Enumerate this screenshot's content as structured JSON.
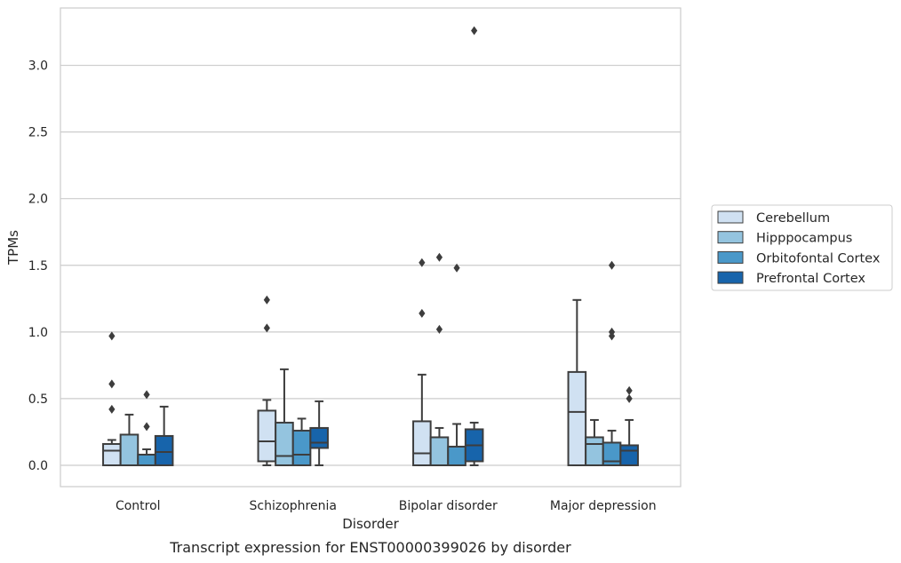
{
  "chart_data": {
    "type": "box",
    "caption": "Transcript expression for ENST00000399026 by disorder",
    "xlabel": "Disorder",
    "ylabel": "TPMs",
    "ylim": [
      -0.16,
      3.43
    ],
    "yticks": [
      0.0,
      0.5,
      1.0,
      1.5,
      2.0,
      2.5,
      3.0
    ],
    "ytick_labels": [
      "0.0",
      "0.5",
      "1.0",
      "1.5",
      "2.0",
      "2.5",
      "3.0"
    ],
    "grid": "horizontal",
    "legend_position": "right",
    "categories": [
      "Control",
      "Schizophrenia",
      "Bipolar disorder",
      "Major depression"
    ],
    "series": [
      {
        "name": "Cerebellum",
        "color": "#d0e1f2",
        "boxes": [
          {
            "whislo": 0.0,
            "q1": 0.0,
            "med": 0.11,
            "q3": 0.16,
            "whishi": 0.19,
            "fliers": [
              0.42,
              0.61,
              0.97
            ]
          },
          {
            "whislo": 0.0,
            "q1": 0.03,
            "med": 0.18,
            "q3": 0.41,
            "whishi": 0.49,
            "fliers": [
              1.03,
              1.24
            ]
          },
          {
            "whislo": 0.0,
            "q1": 0.0,
            "med": 0.09,
            "q3": 0.33,
            "whishi": 0.68,
            "fliers": [
              1.14,
              1.52
            ]
          },
          {
            "whislo": 0.0,
            "q1": 0.0,
            "med": 0.4,
            "q3": 0.7,
            "whishi": 1.24,
            "fliers": []
          }
        ]
      },
      {
        "name": "Hipppocampus",
        "color": "#94c4df",
        "boxes": [
          {
            "whislo": 0.0,
            "q1": 0.0,
            "med": 0.0,
            "q3": 0.23,
            "whishi": 0.38,
            "fliers": []
          },
          {
            "whislo": 0.0,
            "q1": 0.0,
            "med": 0.07,
            "q3": 0.32,
            "whishi": 0.72,
            "fliers": []
          },
          {
            "whislo": 0.0,
            "q1": 0.0,
            "med": 0.0,
            "q3": 0.21,
            "whishi": 0.28,
            "fliers": [
              1.02,
              1.56
            ]
          },
          {
            "whislo": 0.0,
            "q1": 0.0,
            "med": 0.16,
            "q3": 0.21,
            "whishi": 0.34,
            "fliers": []
          }
        ]
      },
      {
        "name": "Orbitofontal Cortex",
        "color": "#4a98c9",
        "boxes": [
          {
            "whislo": 0.0,
            "q1": 0.0,
            "med": 0.0,
            "q3": 0.08,
            "whishi": 0.12,
            "fliers": [
              0.29,
              0.53
            ]
          },
          {
            "whislo": 0.0,
            "q1": 0.0,
            "med": 0.08,
            "q3": 0.26,
            "whishi": 0.35,
            "fliers": []
          },
          {
            "whislo": 0.0,
            "q1": 0.0,
            "med": 0.0,
            "q3": 0.14,
            "whishi": 0.31,
            "fliers": [
              1.48
            ]
          },
          {
            "whislo": 0.0,
            "q1": 0.0,
            "med": 0.03,
            "q3": 0.17,
            "whishi": 0.26,
            "fliers": [
              0.97,
              1.0,
              1.5
            ]
          }
        ]
      },
      {
        "name": "Prefrontal Cortex",
        "color": "#1764ab",
        "boxes": [
          {
            "whislo": 0.0,
            "q1": 0.0,
            "med": 0.1,
            "q3": 0.22,
            "whishi": 0.44,
            "fliers": []
          },
          {
            "whislo": 0.0,
            "q1": 0.13,
            "med": 0.17,
            "q3": 0.28,
            "whishi": 0.48,
            "fliers": []
          },
          {
            "whislo": 0.0,
            "q1": 0.03,
            "med": 0.15,
            "q3": 0.27,
            "whishi": 0.32,
            "fliers": [
              3.26
            ]
          },
          {
            "whislo": 0.0,
            "q1": 0.0,
            "med": 0.11,
            "q3": 0.15,
            "whishi": 0.34,
            "fliers": [
              0.5,
              0.56
            ]
          }
        ]
      }
    ]
  }
}
